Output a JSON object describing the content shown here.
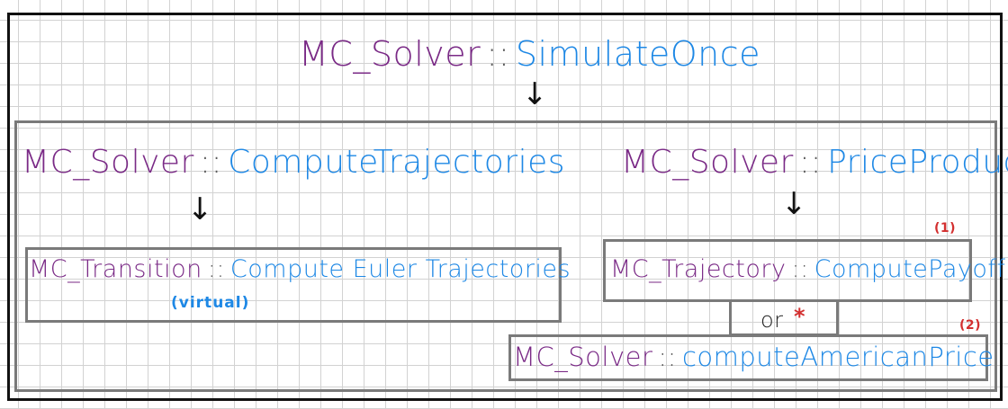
{
  "title": {
    "class": "MC_Solver",
    "sep": "::",
    "method": "SimulateOnce"
  },
  "left": {
    "class": "MC_Solver",
    "sep": "::",
    "method": "ComputeTrajectories"
  },
  "right": {
    "class": "MC_Solver",
    "sep": "::",
    "method": "PriceProduct"
  },
  "transition": {
    "class": "MC_Transition",
    "sep": "::",
    "method": "Compute Euler Trajectories",
    "note": "(virtual)"
  },
  "trajectory": {
    "class": "MC_Trajectory",
    "sep": "::",
    "method": "ComputePayoff",
    "marker": "(1)"
  },
  "connector": {
    "or_label": "or",
    "star": "*"
  },
  "american": {
    "class": "MC_Solver",
    "sep": "::",
    "method": "computeAmericanPrice",
    "marker": "(2)"
  },
  "arrows": {
    "glyph": "↓"
  },
  "colors": {
    "class": "#7a2a86",
    "method": "#1e88e5",
    "marker": "#d32f2f",
    "box": "#7a7a7a",
    "frame": "#111111"
  }
}
